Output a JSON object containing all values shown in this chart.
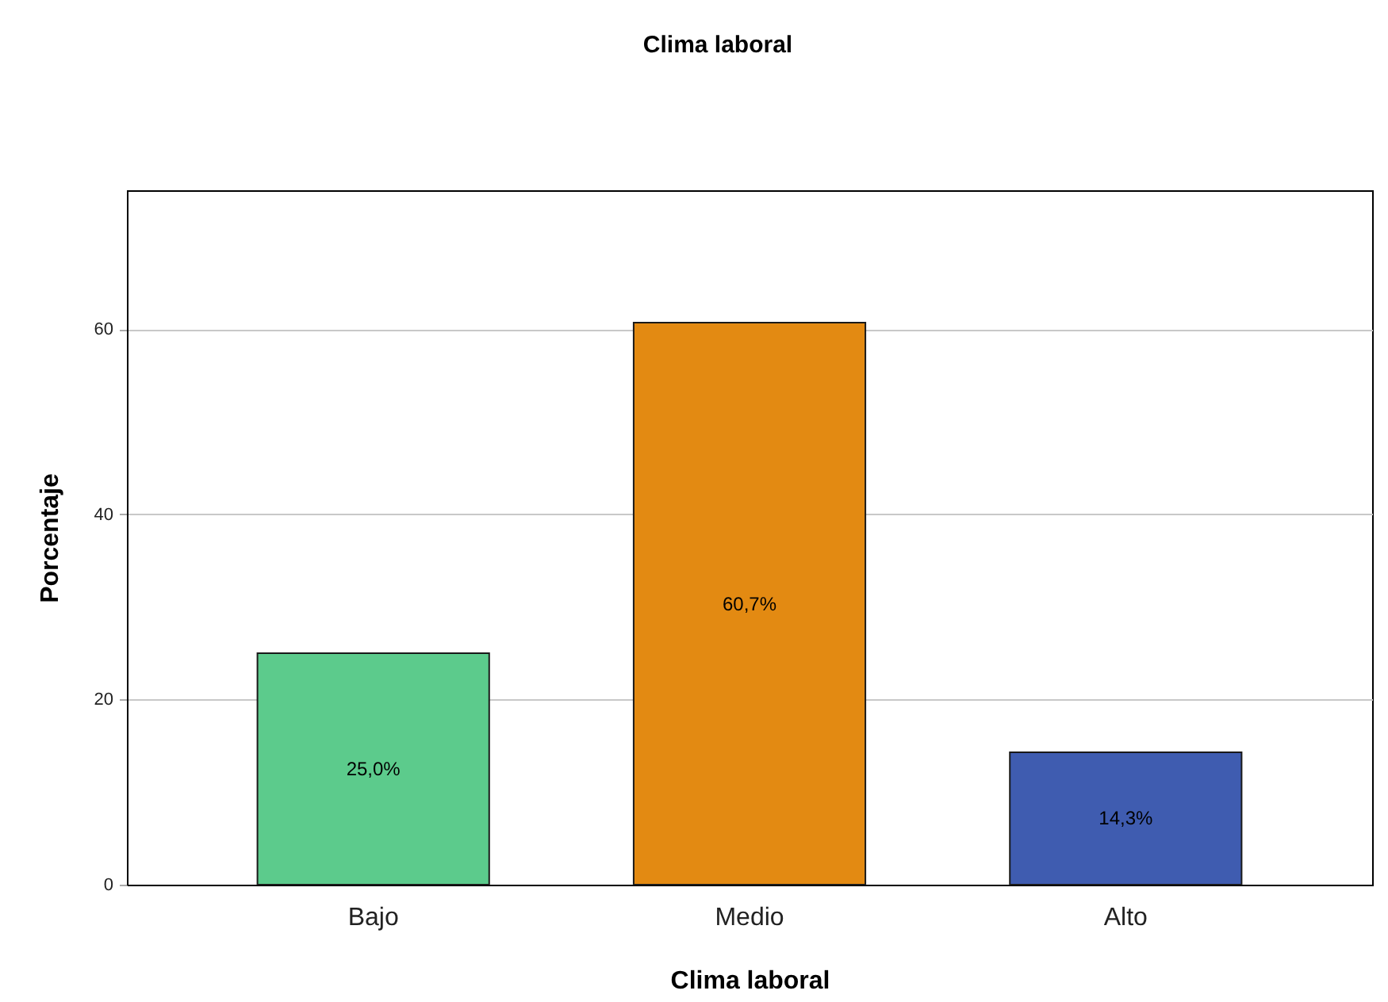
{
  "chart_data": {
    "type": "bar",
    "title": "Clima laboral",
    "xlabel": "Clima laboral",
    "ylabel": "Porcentaje",
    "categories": [
      "Bajo",
      "Medio",
      "Alto"
    ],
    "values": [
      25.0,
      60.7,
      14.3
    ],
    "colors": [
      "#5ccb8c",
      "#e38a12",
      "#3f5cb0"
    ],
    "value_labels": [
      "25,0%",
      "60,7%",
      "14,3%"
    ],
    "ylim": [
      0,
      75
    ],
    "yticks": [
      0,
      20,
      40,
      60
    ],
    "grid": "y"
  }
}
